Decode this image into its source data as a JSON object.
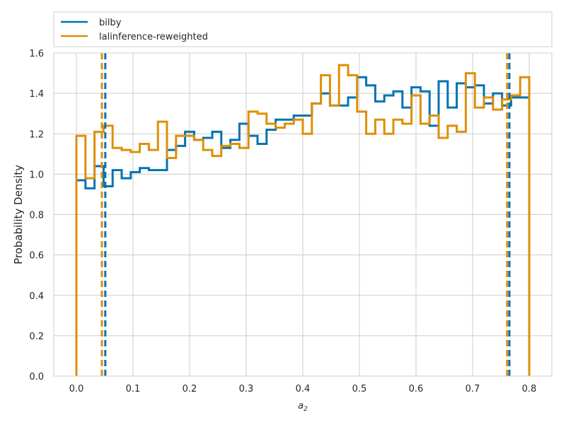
{
  "chart_data": {
    "type": "histogram",
    "xlabel": "a2",
    "ylabel": "Probability Density",
    "xlim": [
      -0.04,
      0.84
    ],
    "ylim": [
      0,
      1.6
    ],
    "xticks": [
      "0.0",
      "0.1",
      "0.2",
      "0.3",
      "0.4",
      "0.5",
      "0.6",
      "0.7",
      "0.8"
    ],
    "yticks": [
      "0.0",
      "0.2",
      "0.4",
      "0.6",
      "0.8",
      "1.0",
      "1.2",
      "1.4",
      "1.6"
    ],
    "grid": true,
    "legend": {
      "placement": "top, outside plot area"
    },
    "bin_edges": [
      0.0,
      0.016,
      0.032,
      0.048,
      0.064,
      0.08,
      0.096,
      0.112,
      0.128,
      0.144,
      0.16,
      0.176,
      0.192,
      0.208,
      0.224,
      0.24,
      0.256,
      0.272,
      0.288,
      0.304,
      0.32,
      0.336,
      0.352,
      0.368,
      0.384,
      0.4,
      0.416,
      0.432,
      0.448,
      0.464,
      0.48,
      0.496,
      0.512,
      0.528,
      0.544,
      0.56,
      0.576,
      0.592,
      0.608,
      0.624,
      0.64,
      0.656,
      0.672,
      0.688,
      0.704,
      0.72,
      0.736,
      0.752,
      0.768,
      0.784,
      0.8
    ],
    "series": [
      {
        "name": "bilby",
        "color": "#0173b2",
        "densities": [
          0.97,
          0.93,
          1.04,
          0.94,
          1.02,
          0.98,
          1.01,
          1.03,
          1.02,
          1.02,
          1.12,
          1.14,
          1.21,
          1.17,
          1.18,
          1.21,
          1.13,
          1.17,
          1.25,
          1.19,
          1.15,
          1.22,
          1.27,
          1.27,
          1.29,
          1.29,
          1.35,
          1.4,
          1.34,
          1.34,
          1.38,
          1.48,
          1.44,
          1.36,
          1.39,
          1.41,
          1.33,
          1.43,
          1.41,
          1.24,
          1.46,
          1.33,
          1.45,
          1.43,
          1.44,
          1.35,
          1.4,
          1.34,
          1.38,
          1.38
        ],
        "interval": [
          0.051,
          0.765
        ]
      },
      {
        "name": "lalinference-reweighted",
        "color": "#de8f05",
        "densities": [
          1.19,
          0.98,
          1.21,
          1.24,
          1.13,
          1.12,
          1.11,
          1.15,
          1.12,
          1.26,
          1.08,
          1.19,
          1.19,
          1.17,
          1.12,
          1.09,
          1.14,
          1.15,
          1.13,
          1.31,
          1.3,
          1.25,
          1.23,
          1.25,
          1.27,
          1.2,
          1.35,
          1.49,
          1.34,
          1.54,
          1.49,
          1.31,
          1.2,
          1.27,
          1.2,
          1.27,
          1.25,
          1.39,
          1.25,
          1.29,
          1.18,
          1.24,
          1.21,
          1.5,
          1.33,
          1.38,
          1.32,
          1.37,
          1.39,
          1.48
        ],
        "interval": [
          0.045,
          0.761
        ]
      }
    ]
  }
}
